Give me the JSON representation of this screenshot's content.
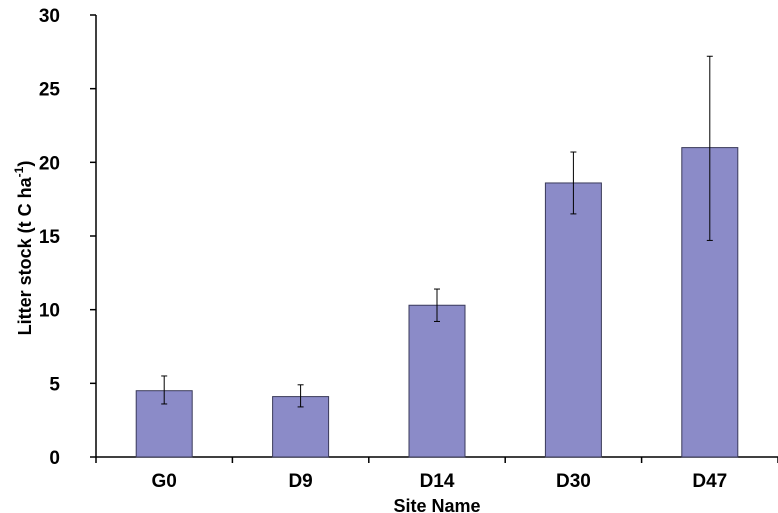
{
  "chart_data": {
    "type": "bar",
    "categories": [
      "G0",
      "D9",
      "D14",
      "D30",
      "D47"
    ],
    "values": [
      4.5,
      4.1,
      10.3,
      18.6,
      21.0
    ],
    "error_low": [
      3.6,
      3.4,
      9.2,
      16.5,
      14.7
    ],
    "error_high": [
      5.5,
      4.9,
      11.4,
      20.7,
      27.2
    ],
    "title": "",
    "xlabel": "Site Name",
    "ylabel": "Litter stock (t C ha-1)",
    "ylabel_parts": {
      "main": "Litter stock (t C ha",
      "sup": "-1",
      "close": ")"
    },
    "ylim": [
      0,
      30
    ],
    "yticks": [
      0,
      5,
      10,
      15,
      20,
      25,
      30
    ],
    "grid": false,
    "bar_color": "#8b8bc8",
    "bar_edge_color": "#3a3a5a"
  }
}
